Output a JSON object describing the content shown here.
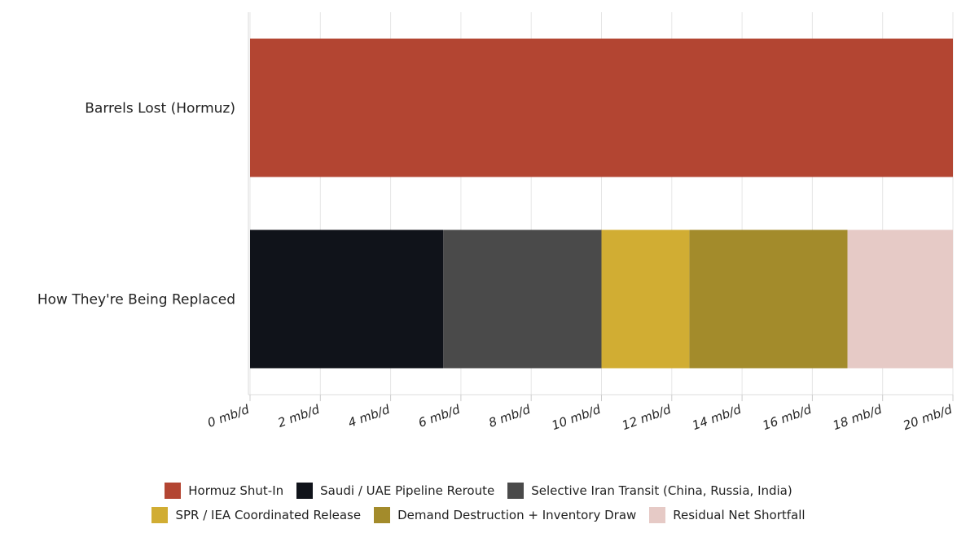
{
  "chart_data": {
    "type": "bar",
    "orientation": "horizontal",
    "stacked": true,
    "categories": [
      "Barrels Lost (Hormuz)",
      "How They're Being Replaced"
    ],
    "series": [
      {
        "name": "Hormuz Shut-In",
        "color": "#b34532",
        "values": [
          20,
          0
        ]
      },
      {
        "name": "Saudi / UAE Pipeline Reroute",
        "color": "#10131a",
        "values": [
          0,
          5.5
        ]
      },
      {
        "name": "Selective Iran Transit (China, Russia, India)",
        "color": "#4a4a4a",
        "values": [
          0,
          4.5
        ]
      },
      {
        "name": "SPR / IEA Coordinated Release",
        "color": "#d1ad33",
        "values": [
          0,
          2.5
        ]
      },
      {
        "name": "Demand Destruction + Inventory Draw",
        "color": "#a38b2b",
        "values": [
          0,
          4.5
        ]
      },
      {
        "name": "Residual Net Shortfall",
        "color": "#e6cac6",
        "values": [
          0,
          3
        ]
      }
    ],
    "x_ticks": [
      "0 mb/d",
      "2 mb/d",
      "4 mb/d",
      "6 mb/d",
      "8 mb/d",
      "10 mb/d",
      "12 mb/d",
      "14 mb/d",
      "16 mb/d",
      "18 mb/d",
      "20 mb/d"
    ],
    "xlim": [
      0,
      20
    ],
    "grid": true,
    "legend_position": "bottom"
  }
}
